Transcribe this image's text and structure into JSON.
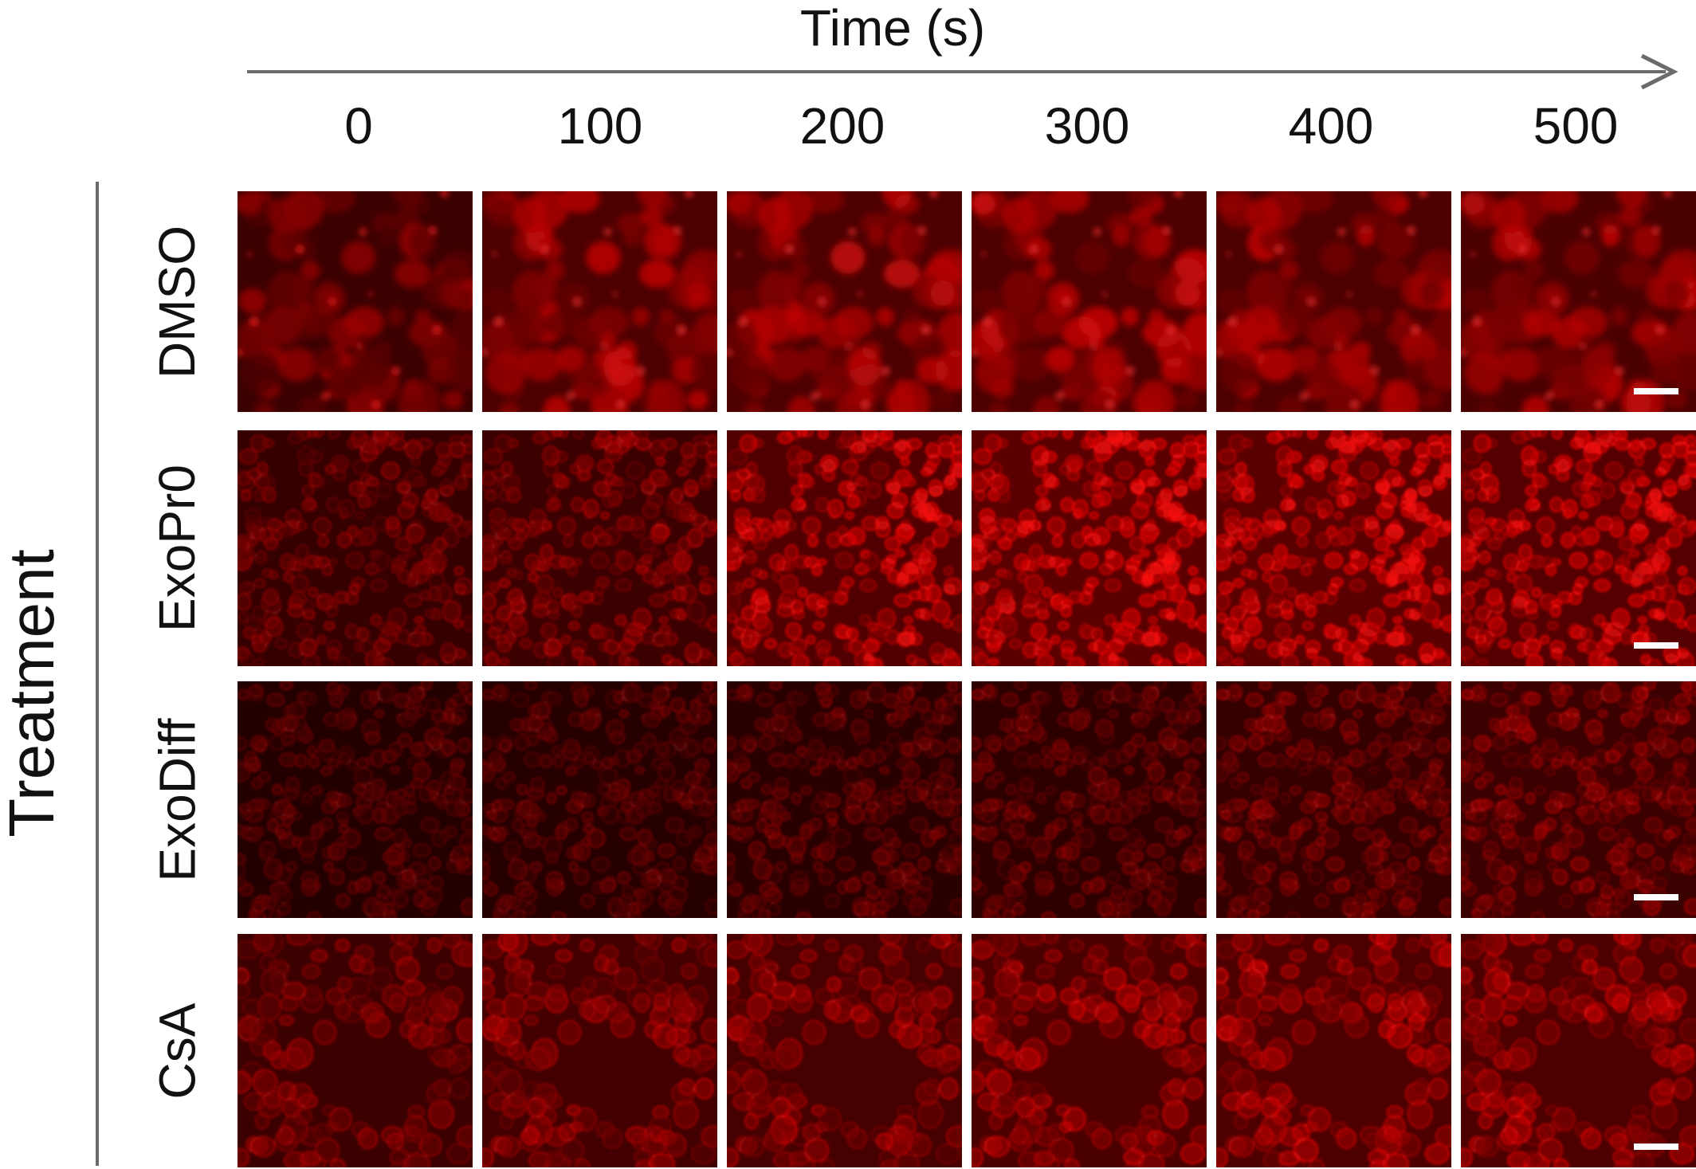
{
  "figure": {
    "time_axis_title": "Time (s)",
    "time_points": [
      "0",
      "100",
      "200",
      "300",
      "400",
      "500"
    ],
    "treatment_axis_title": "Treatment",
    "treatments": [
      "DMSO",
      "ExoPr0",
      "ExoDiff",
      "CsA"
    ]
  },
  "panels": [
    {
      "treatment": "DMSO",
      "intensity": [
        0.55,
        0.8,
        0.82,
        0.8,
        0.8,
        0.78
      ],
      "texture": "large-cells"
    },
    {
      "treatment": "ExoPr0",
      "intensity": [
        0.45,
        0.55,
        0.85,
        1.0,
        0.98,
        0.92
      ],
      "texture": "dense-small"
    },
    {
      "treatment": "ExoDiff",
      "intensity": [
        0.22,
        0.25,
        0.3,
        0.35,
        0.45,
        0.55
      ],
      "texture": "dense-small"
    },
    {
      "treatment": "CsA",
      "intensity": [
        0.55,
        0.65,
        0.7,
        0.78,
        0.82,
        0.82
      ],
      "texture": "cell-clusters"
    }
  ],
  "colors": {
    "fluorescence": "#ff1a1a",
    "axis": "#6b6b6b",
    "scale_bar": "#ffffff"
  }
}
